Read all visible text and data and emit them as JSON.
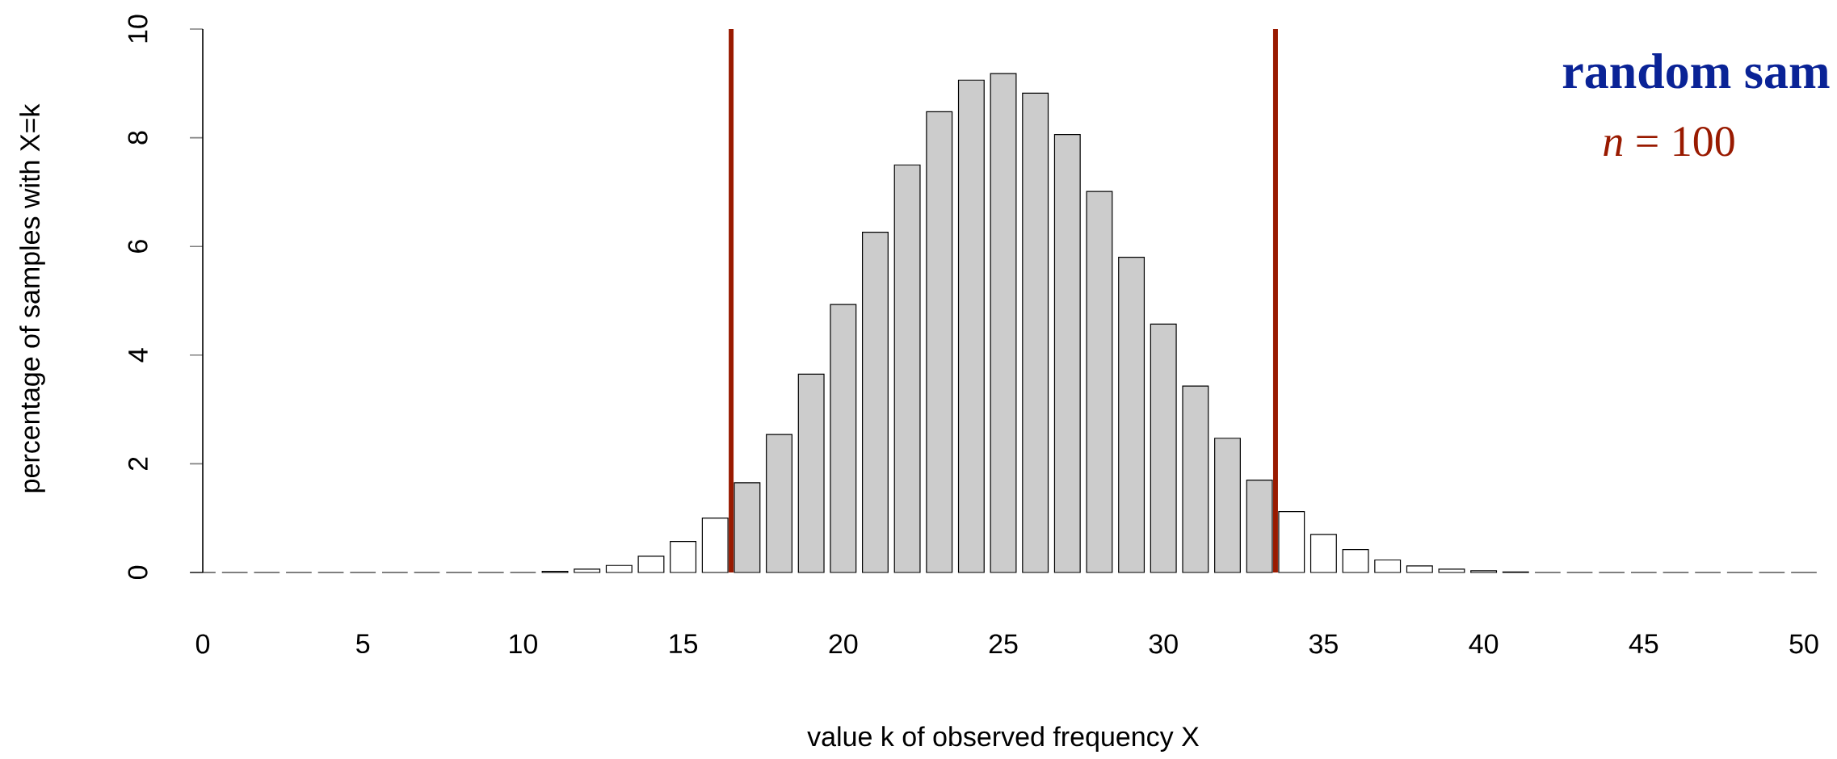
{
  "chart_data": {
    "type": "bar",
    "title": "random sam",
    "xlabel": "value k of observed frequency X",
    "ylabel": "percentage of samples with X=k",
    "annotations": [
      "*n* = 100"
    ],
    "x": [
      0,
      1,
      2,
      3,
      4,
      5,
      6,
      7,
      8,
      9,
      10,
      11,
      12,
      13,
      14,
      15,
      16,
      17,
      18,
      19,
      20,
      21,
      22,
      23,
      24,
      25,
      26,
      27,
      28,
      29,
      30,
      31,
      32,
      33,
      34,
      35,
      36,
      37,
      38,
      39,
      40,
      41,
      42,
      43,
      44,
      45,
      46,
      47,
      48,
      49,
      50
    ],
    "values": [
      0,
      0,
      0,
      0,
      0,
      0,
      0,
      0,
      0,
      0,
      0,
      0.02,
      0.06,
      0.13,
      0.3,
      0.57,
      1.0,
      1.65,
      2.54,
      3.65,
      4.93,
      6.26,
      7.5,
      8.48,
      9.06,
      9.18,
      8.82,
      8.06,
      7.01,
      5.8,
      4.57,
      3.43,
      2.47,
      1.7,
      1.12,
      0.7,
      0.42,
      0.23,
      0.12,
      0.06,
      0.03,
      0.01,
      0,
      0,
      0,
      0,
      0,
      0,
      0,
      0,
      0
    ],
    "colors": [
      "#000000",
      "#000000",
      "#000000",
      "#000000",
      "#000000",
      "#000000",
      "#000000",
      "#000000",
      "#000000",
      "#000000",
      "#000000",
      "#ffffff",
      "#ffffff",
      "#ffffff",
      "#ffffff",
      "#ffffff",
      "#ffffff",
      "#cccccc",
      "#cccccc",
      "#cccccc",
      "#cccccc",
      "#cccccc",
      "#cccccc",
      "#cccccc",
      "#cccccc",
      "#cccccc",
      "#cccccc",
      "#cccccc",
      "#cccccc",
      "#cccccc",
      "#cccccc",
      "#cccccc",
      "#cccccc",
      "#cccccc",
      "#ffffff",
      "#ffffff",
      "#ffffff",
      "#ffffff",
      "#ffffff",
      "#ffffff",
      "#ffffff",
      "#ffffff",
      "#000000",
      "#000000",
      "#000000",
      "#000000",
      "#000000",
      "#000000",
      "#000000",
      "#000000",
      "#000000"
    ],
    "xlim": [
      0,
      50
    ],
    "xticks": [
      0,
      5,
      10,
      15,
      20,
      25,
      30,
      35,
      40,
      45,
      50
    ],
    "ylim": [
      0,
      10
    ],
    "yticks": [
      0,
      2,
      4,
      6,
      8,
      10
    ],
    "ref_lines": [
      {
        "axis": "x",
        "value": 16.5,
        "color": "#991a00"
      },
      {
        "axis": "x",
        "value": 33.5,
        "color": "#991a00"
      }
    ]
  }
}
